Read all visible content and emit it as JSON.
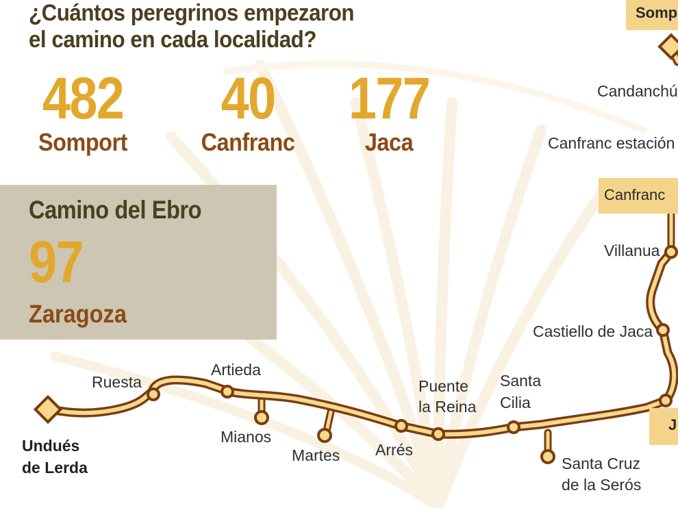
{
  "title": {
    "line1": "¿Cuántos peregrinos empezaron",
    "line2": "el camino en cada localidad?"
  },
  "stats": [
    {
      "value": "482",
      "label": "Somport"
    },
    {
      "value": "40",
      "label": "Canfranc"
    },
    {
      "value": "177",
      "label": "Jaca"
    }
  ],
  "ebro": {
    "title": "Camino del Ebro",
    "value": "97",
    "city": "Zaragoza"
  },
  "places": {
    "somport": "Somp",
    "candanchu": "Candanchú",
    "canfranc_estacion": "Canfranc estación",
    "canfranc": "Canfranc",
    "villanua": "Villanua",
    "castiello": "Castiello de Jaca",
    "jaca_partial": "J",
    "undues_l1": "Undués",
    "undues_l2": "de Lerda",
    "ruesta": "Ruesta",
    "artieda": "Artieda",
    "mianos": "Mianos",
    "martes": "Martes",
    "arres": "Arrés",
    "puente_l1": "Puente",
    "puente_l2": "la Reina",
    "santa_cilia_l1": "Santa",
    "santa_cilia_l2": "Cilia",
    "santa_cruz_l1": "Santa Cruz",
    "santa_cruz_l2": "de la Serós"
  },
  "colors": {
    "route_fill": "#f6d98c",
    "route_stroke": "#7a3c12",
    "stat_number": "#e2a82d",
    "stat_label": "#8b4a16",
    "title": "#4a3f1f",
    "box": "#cdc6b3",
    "highlight": "#f4d48a"
  }
}
